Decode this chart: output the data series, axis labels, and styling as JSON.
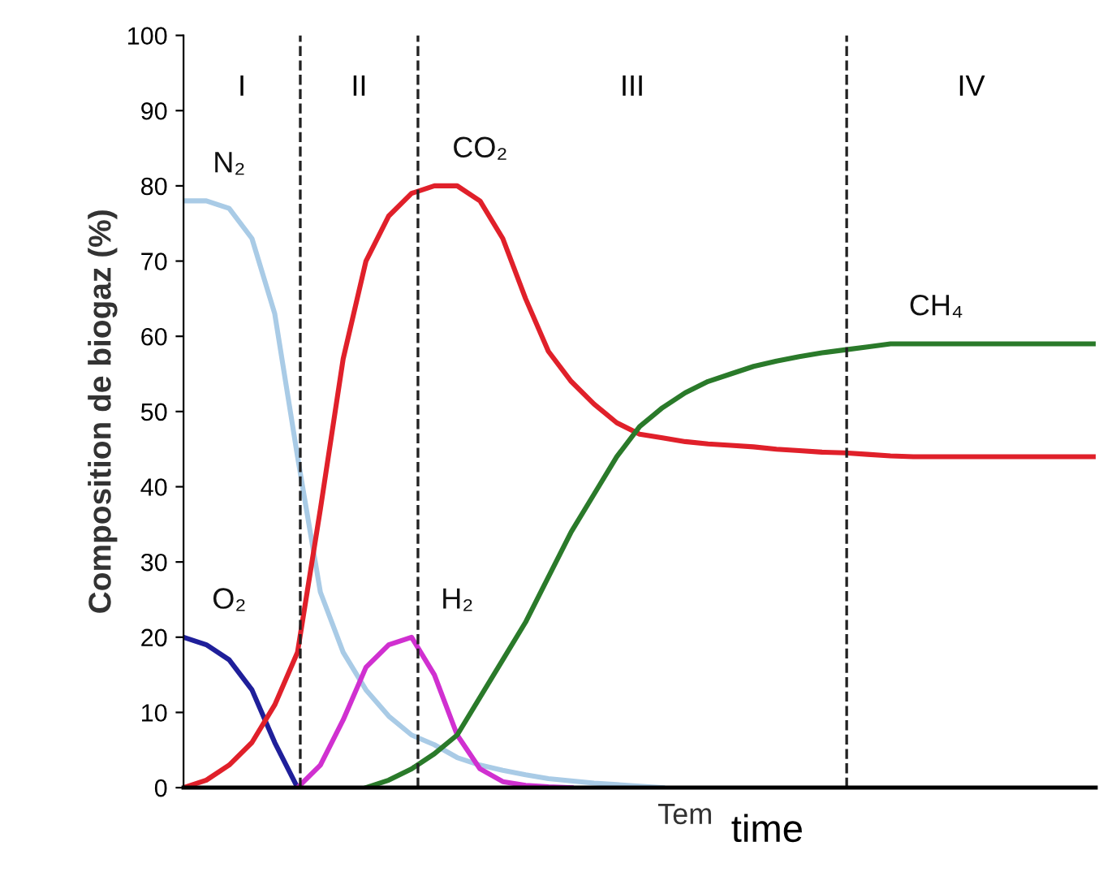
{
  "chart_data": {
    "type": "line",
    "ylabel": "Composition de biogaz (%)",
    "xlabel": "time",
    "categories": [
      null,
      null,
      null,
      null,
      null,
      null,
      null,
      null,
      null,
      null,
      null,
      null,
      null,
      null,
      null,
      null,
      null,
      null,
      null,
      null,
      null,
      null,
      null,
      null,
      null,
      null,
      null,
      null,
      null,
      null,
      null,
      null,
      null,
      null,
      null,
      null,
      null,
      null,
      null,
      null,
      null
    ],
    "ylim": [
      0,
      100
    ],
    "yticks": [
      0,
      10,
      20,
      30,
      40,
      50,
      60,
      70,
      80,
      90,
      100
    ],
    "grid": false,
    "legend": false,
    "marker": "none",
    "line_style": "solid",
    "series": [
      {
        "name": "N₂",
        "color": "#a9cbe6",
        "values": [
          78,
          78,
          77,
          73,
          63,
          44,
          26,
          18,
          13,
          9.5,
          7,
          5.7,
          4,
          3,
          2.3,
          1.7,
          1.2,
          0.9,
          0.6,
          0.4,
          0.2,
          0,
          null,
          null,
          null,
          null,
          null,
          null,
          null,
          null,
          null,
          null,
          null,
          null,
          null,
          null,
          null,
          null,
          null,
          null,
          null
        ]
      },
      {
        "name": "O₂",
        "color": "#1f1f9a",
        "values": [
          20,
          19,
          17,
          13,
          6,
          0,
          null,
          null,
          null,
          null,
          null,
          null,
          null,
          null,
          null,
          null,
          null,
          null,
          null,
          null,
          null,
          null,
          null,
          null,
          null,
          null,
          null,
          null,
          null,
          null,
          null,
          null,
          null,
          null,
          null,
          null,
          null,
          null,
          null,
          null,
          null
        ]
      },
      {
        "name": "CO₂",
        "color": "#e0202a",
        "values": [
          0,
          1,
          3,
          6,
          11,
          18,
          37,
          57,
          70,
          76,
          79,
          80,
          80,
          78,
          73,
          65,
          58,
          54,
          51,
          48.5,
          47,
          46.5,
          46,
          45.7,
          45.5,
          45.3,
          45,
          44.8,
          44.6,
          44.5,
          44.3,
          44.1,
          44,
          44,
          44,
          44,
          44,
          44,
          44,
          44,
          44
        ]
      },
      {
        "name": "H₂",
        "color": "#d030d0",
        "values": [
          null,
          null,
          null,
          null,
          null,
          0,
          3,
          9,
          16,
          19,
          20,
          15,
          7,
          2.5,
          0.8,
          0.3,
          0.1,
          0,
          null,
          null,
          null,
          null,
          null,
          null,
          null,
          null,
          null,
          null,
          null,
          null,
          null,
          null,
          null,
          null,
          null,
          null,
          null,
          null,
          null,
          null,
          null
        ]
      },
      {
        "name": "CH₄",
        "color": "#2a7a2a",
        "values": [
          null,
          null,
          null,
          null,
          null,
          null,
          null,
          null,
          0,
          1,
          2.5,
          4.5,
          7,
          12,
          17,
          22,
          28,
          34,
          39,
          44,
          48,
          50.5,
          52.5,
          54,
          55,
          56,
          56.7,
          57.3,
          57.8,
          58.2,
          58.6,
          59,
          59,
          59,
          59,
          59,
          59,
          59,
          59,
          59,
          59
        ]
      }
    ],
    "annotations": [
      "I",
      "II",
      "III",
      "IV",
      "Tem"
    ]
  }
}
